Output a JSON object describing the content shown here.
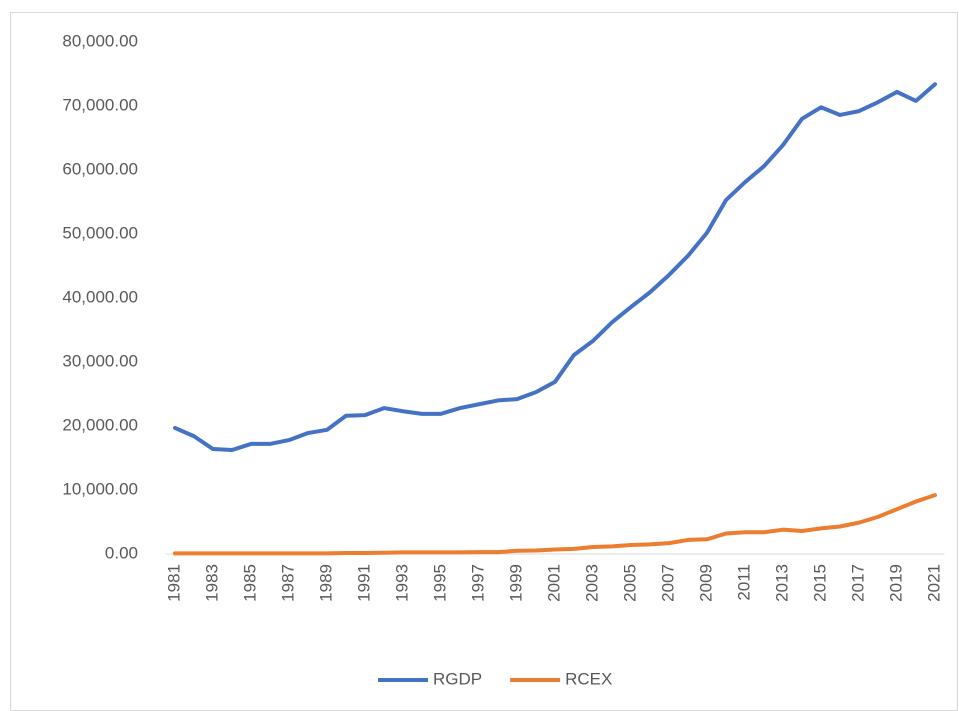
{
  "chart_data": {
    "type": "line",
    "categories": [
      "1981",
      null,
      "1983",
      null,
      "1985",
      null,
      "1987",
      null,
      "1989",
      null,
      "1991",
      null,
      "1993",
      null,
      "1995",
      null,
      "1997",
      null,
      "1999",
      null,
      "2001",
      null,
      "2003",
      null,
      "2005",
      null,
      "2007",
      null,
      "2009",
      null,
      "2011",
      null,
      "2013",
      null,
      "2015",
      null,
      "2017",
      null,
      "2019",
      null,
      "2021"
    ],
    "series": [
      {
        "name": "RGDP",
        "color": "#4472c4",
        "values": [
          19700,
          18400,
          16400,
          16250,
          17200,
          17200,
          17800,
          18900,
          19400,
          21600,
          21700,
          22800,
          22300,
          21900,
          21900,
          22800,
          23400,
          24000,
          24200,
          25300,
          26900,
          31100,
          33300,
          36200,
          38600,
          40900,
          43600,
          46600,
          50200,
          55300,
          58100,
          60600,
          63900,
          68000,
          69800,
          68600,
          69200,
          70600,
          72200,
          70800,
          73400
        ]
      },
      {
        "name": "RCEX",
        "color": "#ed7d31",
        "values": [
          100,
          100,
          100,
          100,
          100,
          100,
          100,
          100,
          100,
          150,
          150,
          200,
          250,
          250,
          250,
          250,
          300,
          300,
          500,
          550,
          700,
          800,
          1100,
          1200,
          1400,
          1500,
          1700,
          2200,
          2300,
          3200,
          3400,
          3400,
          3800,
          3600,
          4000,
          4300,
          4900,
          5800,
          7000,
          8200,
          9200
        ]
      }
    ],
    "ylim": [
      0,
      80000
    ],
    "yticks": [
      {
        "value": 0,
        "label": "0.00"
      },
      {
        "value": 10000,
        "label": "10,000.00"
      },
      {
        "value": 20000,
        "label": "20,000.00"
      },
      {
        "value": 30000,
        "label": "30,000.00"
      },
      {
        "value": 40000,
        "label": "40,000.00"
      },
      {
        "value": 50000,
        "label": "50,000.00"
      },
      {
        "value": 60000,
        "label": "60,000.00"
      },
      {
        "value": 70000,
        "label": "70,000.00"
      },
      {
        "value": 80000,
        "label": "80,000.00"
      }
    ],
    "grid": false,
    "legend": "bottom"
  }
}
